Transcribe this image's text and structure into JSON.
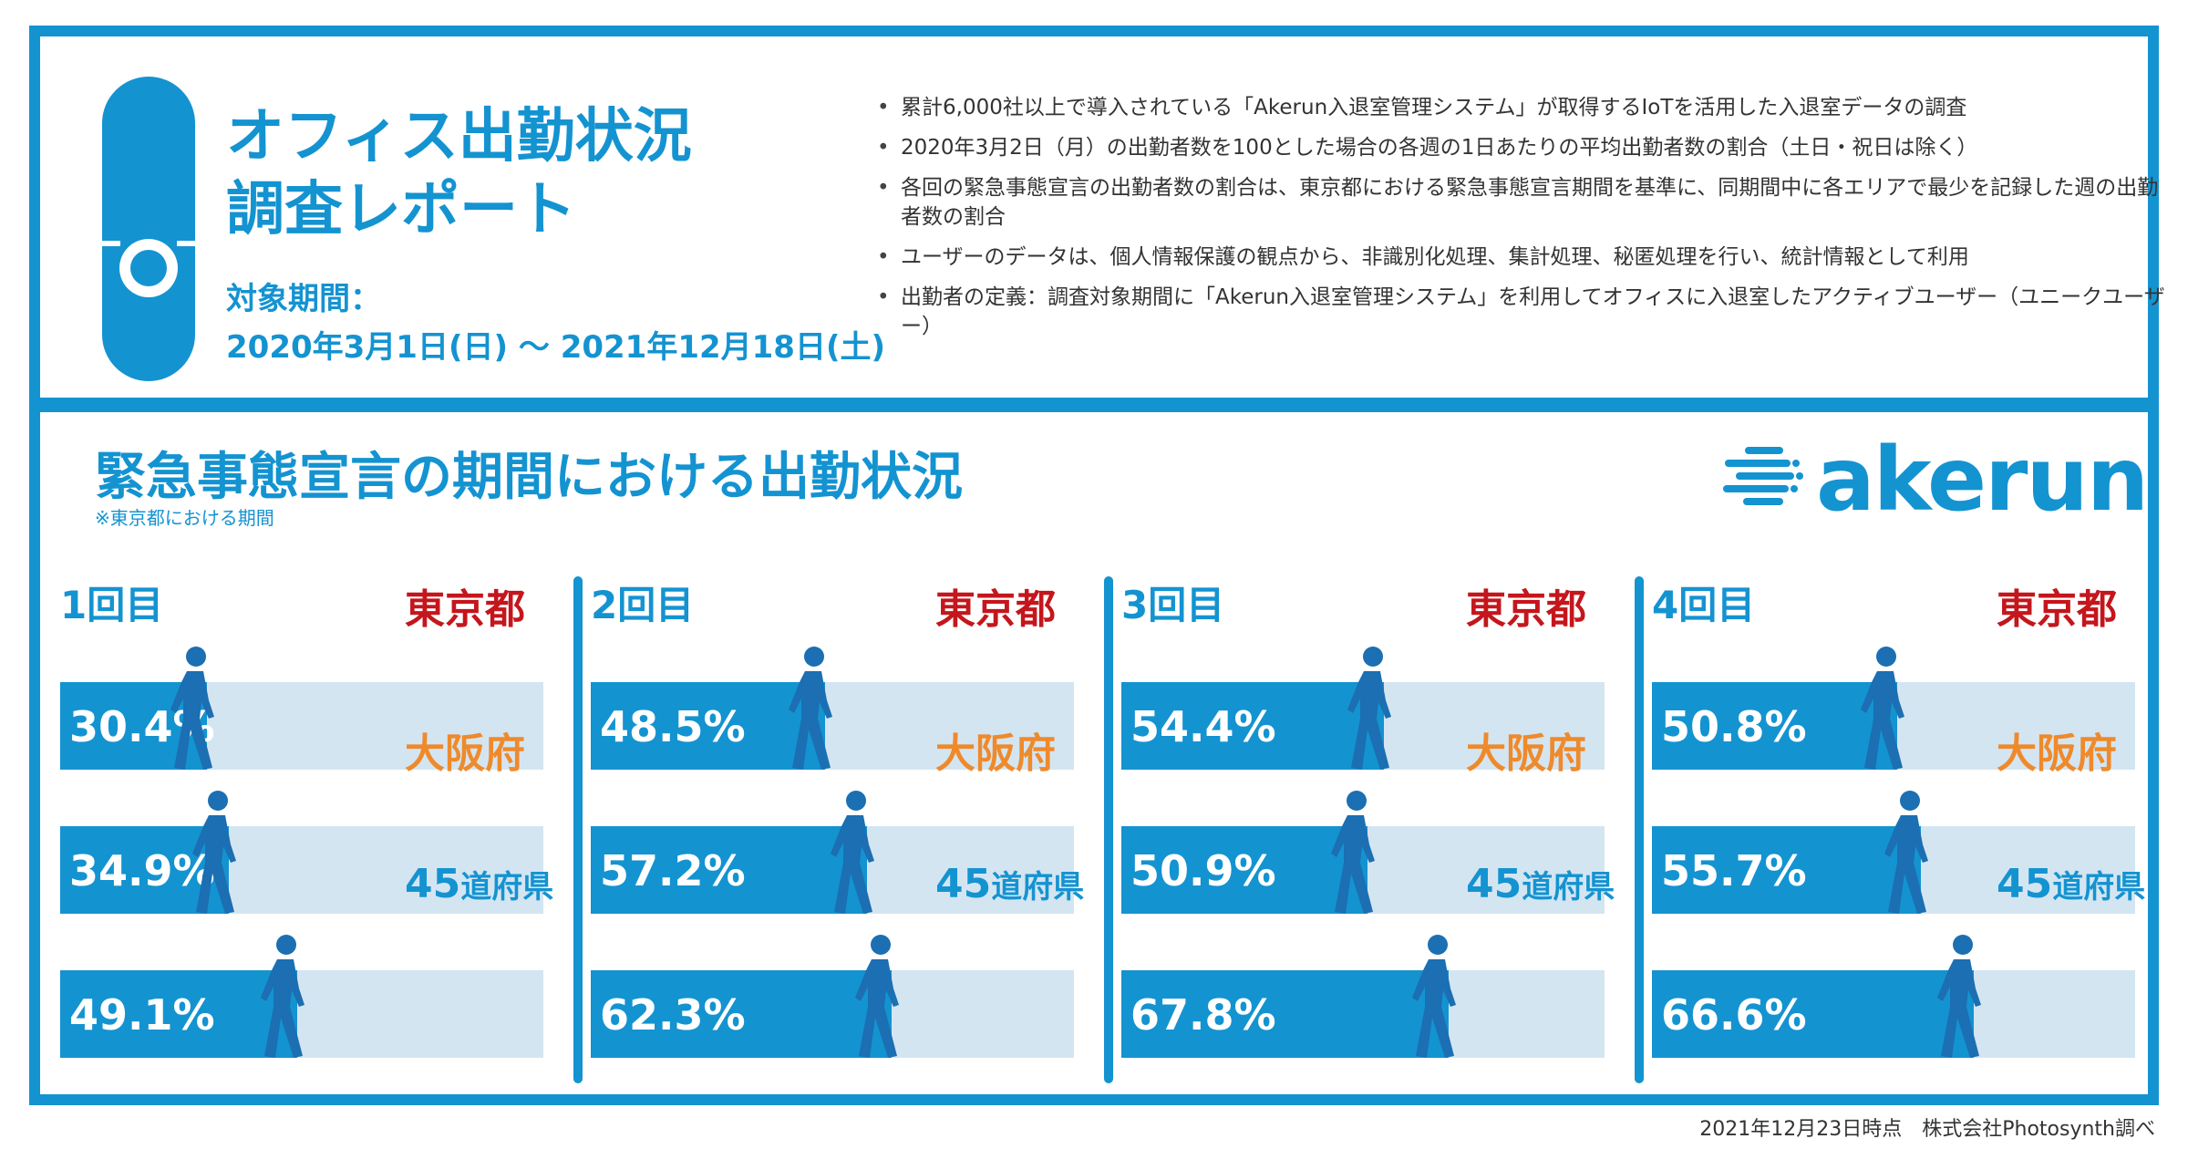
{
  "header": {
    "title_line1": "オフィス出勤状況",
    "title_line2": "調査レポート",
    "period_label": "対象期間：",
    "period_value": "2020年3月1日(日) 〜 2021年12月18日(土)",
    "notes": [
      "累計6,000社以上で導入されている「Akerun入退室管理システム」が取得するIoTを活用した入退室データの調査",
      "2020年3月2日（月）の出勤者数を100とした場合の各週の1日あたりの平均出勤者数の割合（土日・祝日は除く）",
      "各回の緊急事態宣言の出勤者数の割合は、東京都における緊急事態宣言期間を基準に、同期間中に各エリアで最少を記録した週の出勤者数の割合",
      "ユーザーのデータは、個人情報保護の観点から、非識別化処理、集計処理、秘匿処理を行い、統計情報として利用",
      "出勤者の定義：調査対象期間に「Akerun入退室管理システム」を利用してオフィスに入退室したアクティブユーザー（ユニークユーザー）"
    ]
  },
  "section": {
    "title": "緊急事態宣言の期間における出勤状況",
    "note": "※東京都における期間",
    "brand": "akerun"
  },
  "colors": {
    "accent": "#1493d1",
    "track": "#d4e5f2",
    "tokyo": "#c4161c",
    "osaka": "#ef8a2b"
  },
  "chart_data": {
    "type": "bar",
    "categories": [
      "1回目",
      "2回目",
      "3回目",
      "4回目"
    ],
    "regions": [
      {
        "name": "東京都",
        "values": [
          30.4,
          48.5,
          54.4,
          50.8
        ]
      },
      {
        "name": "大阪府",
        "values": [
          34.9,
          57.2,
          50.9,
          55.7
        ]
      },
      {
        "name_main": "45",
        "name_suffix": "道府県",
        "values": [
          49.1,
          62.3,
          67.8,
          66.6
        ]
      }
    ],
    "labels": [
      [
        "30.4%",
        "34.9%",
        "49.1%"
      ],
      [
        "48.5%",
        "57.2%",
        "62.3%"
      ],
      [
        "54.4%",
        "50.9%",
        "67.8%"
      ],
      [
        "50.8%",
        "55.7%",
        "66.6%"
      ]
    ],
    "value_max": 100,
    "orientation": "horizontal"
  },
  "footer": {
    "text": "2021年12月23日時点　株式会社Photosynth調べ"
  }
}
